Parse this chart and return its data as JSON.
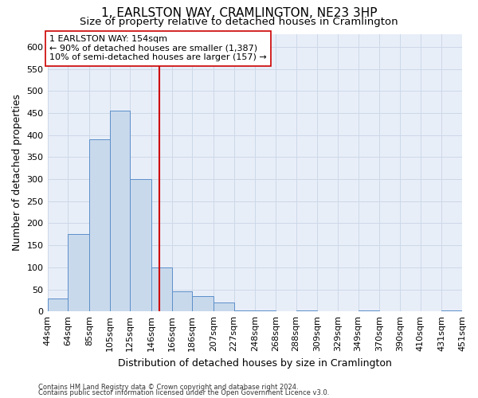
{
  "title": "1, EARLSTON WAY, CRAMLINGTON, NE23 3HP",
  "subtitle": "Size of property relative to detached houses in Cramlington",
  "xlabel": "Distribution of detached houses by size in Cramlington",
  "ylabel": "Number of detached properties",
  "footnote1": "Contains HM Land Registry data © Crown copyright and database right 2024.",
  "footnote2": "Contains public sector information licensed under the Open Government Licence v3.0.",
  "annotation_title": "1 EARLSTON WAY: 154sqm",
  "annotation_line1": "← 90% of detached houses are smaller (1,387)",
  "annotation_line2": "10% of semi-detached houses are larger (157) →",
  "property_size": 154,
  "bar_color": "#c9d9ec",
  "bar_edge_color": "#5b8fc9",
  "vline_color": "#cc0000",
  "annotation_box_color": "#ffffff",
  "annotation_box_edge": "#cc0000",
  "bin_edges": [
    44,
    64,
    85,
    105,
    125,
    146,
    166,
    186,
    207,
    227,
    248,
    268,
    288,
    309,
    329,
    349,
    370,
    390,
    410,
    431,
    451
  ],
  "bar_heights": [
    30,
    175,
    390,
    455,
    300,
    100,
    45,
    35,
    20,
    3,
    3,
    0,
    3,
    0,
    0,
    3,
    0,
    0,
    0,
    3
  ],
  "ylim": [
    0,
    630
  ],
  "yticks": [
    0,
    50,
    100,
    150,
    200,
    250,
    300,
    350,
    400,
    450,
    500,
    550,
    600
  ],
  "grid_color": "#ccd8e8",
  "bg_color": "#e8eef8",
  "title_fontsize": 11,
  "subtitle_fontsize": 9.5,
  "xlabel_fontsize": 9,
  "ylabel_fontsize": 9,
  "tick_fontsize": 8,
  "annotation_fontsize": 8,
  "footnote_fontsize": 6
}
